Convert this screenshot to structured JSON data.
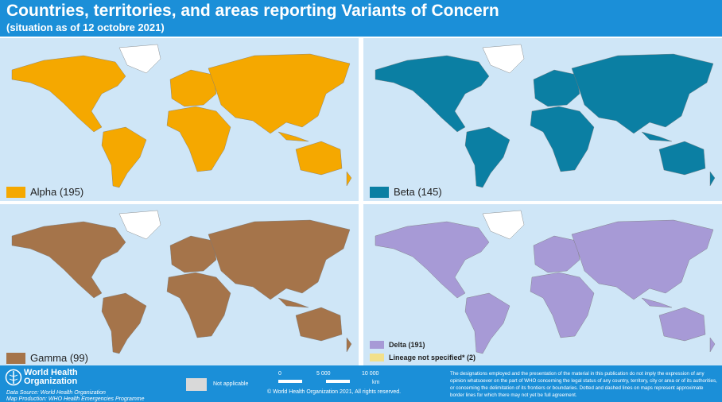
{
  "header": {
    "title": "Countries, territories, and areas reporting Variants of Concern",
    "subtitle": "(situation as of 12 octobre 2021)"
  },
  "panels": [
    {
      "legend": [
        {
          "label": "Alpha (195)",
          "color": "#f5a800"
        }
      ]
    },
    {
      "legend": [
        {
          "label": "Beta (145)",
          "color": "#0b7fa3"
        }
      ]
    },
    {
      "legend": [
        {
          "label": "Gamma (99)",
          "color": "#a5744a"
        }
      ]
    },
    {
      "legend": [
        {
          "label": "Delta (191)",
          "color": "#a79ad6"
        },
        {
          "label": "Lineage not specified* (2)",
          "color": "#f2e08a"
        }
      ]
    }
  ],
  "footer": {
    "organization": "World Health Organization",
    "data_source": "Data Source: World Health Organization",
    "map_production": "Map Production: WHO Health Emergencies Programme",
    "not_applicable": "Not applicable",
    "scale": [
      "0",
      "5 000",
      "10 000",
      "km"
    ],
    "copyright": "© World Health Organization 2021, All rights reserved.",
    "disclaimer": "The designations employed and the presentation of the material in this publication do not imply the expression of any opinion whatsoever on the part of WHO concerning the legal status of any country, territory, city or area or of its authorities, or concerning the delimitation of its frontiers or boundaries. Dotted and dashed lines on maps represent approximate border lines for which there may not yet be full agreement."
  }
}
